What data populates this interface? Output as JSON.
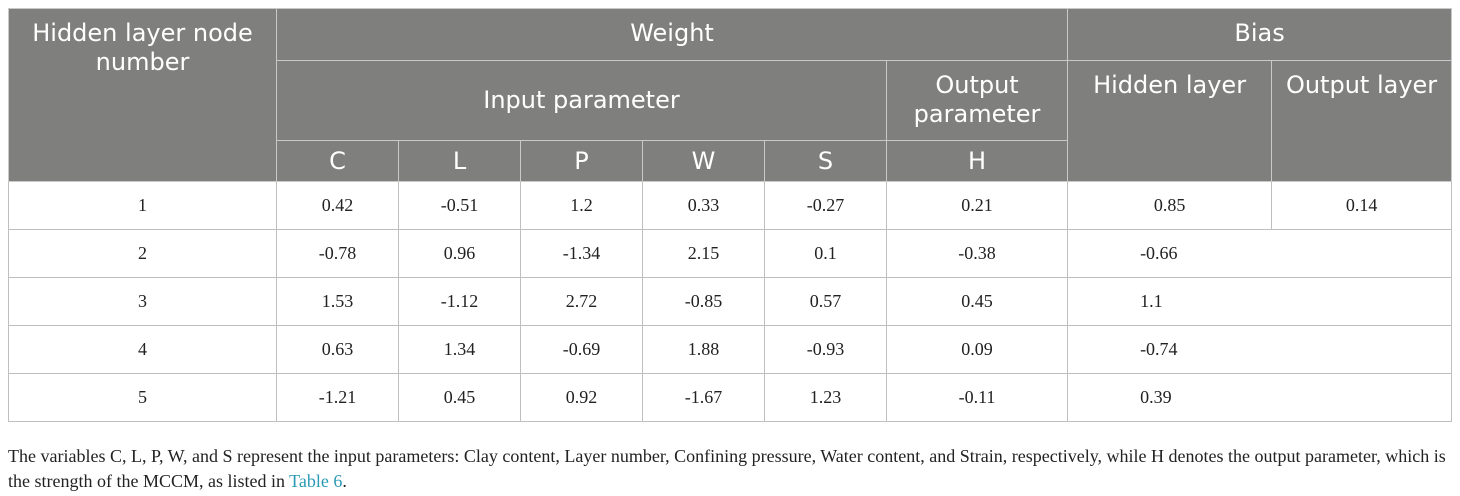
{
  "header": {
    "node_label": "Hidden layer node number",
    "weight_label": "Weight",
    "bias_label": "Bias",
    "input_param_label": "Input parameter",
    "output_param_label": "Output parameter",
    "hidden_layer_label": "Hidden layer",
    "output_layer_label": "Output layer",
    "columns": [
      "C",
      "L",
      "P",
      "W",
      "S",
      "H"
    ]
  },
  "rows": [
    {
      "node": "1",
      "C": "0.42",
      "L": "-0.51",
      "P": "1.2",
      "W": "0.33",
      "S": "-0.27",
      "H": "0.21",
      "hidden_bias": "0.85",
      "output_bias": "0.14"
    },
    {
      "node": "2",
      "C": "-0.78",
      "L": "0.96",
      "P": "-1.34",
      "W": "2.15",
      "S": "0.1",
      "H": "-0.38",
      "hidden_bias": "-0.66"
    },
    {
      "node": "3",
      "C": "1.53",
      "L": "-1.12",
      "P": "2.72",
      "W": "-0.85",
      "S": "0.57",
      "H": "0.45",
      "hidden_bias": "1.1"
    },
    {
      "node": "4",
      "C": "0.63",
      "L": "1.34",
      "P": "-0.69",
      "W": "1.88",
      "S": "-0.93",
      "H": "0.09",
      "hidden_bias": "-0.74"
    },
    {
      "node": "5",
      "C": "-1.21",
      "L": "0.45",
      "P": "0.92",
      "W": "-1.67",
      "S": "1.23",
      "H": "-0.11",
      "hidden_bias": "0.39"
    }
  ],
  "footnote": {
    "text": "The variables C, L, P, W, and S represent the input parameters: Clay content, Layer number, Confining pressure, Water content, and Strain, respectively, while H denotes the output parameter, which is the strength of the MCCM, as listed in ",
    "link": "Table 6",
    "end": "."
  }
}
